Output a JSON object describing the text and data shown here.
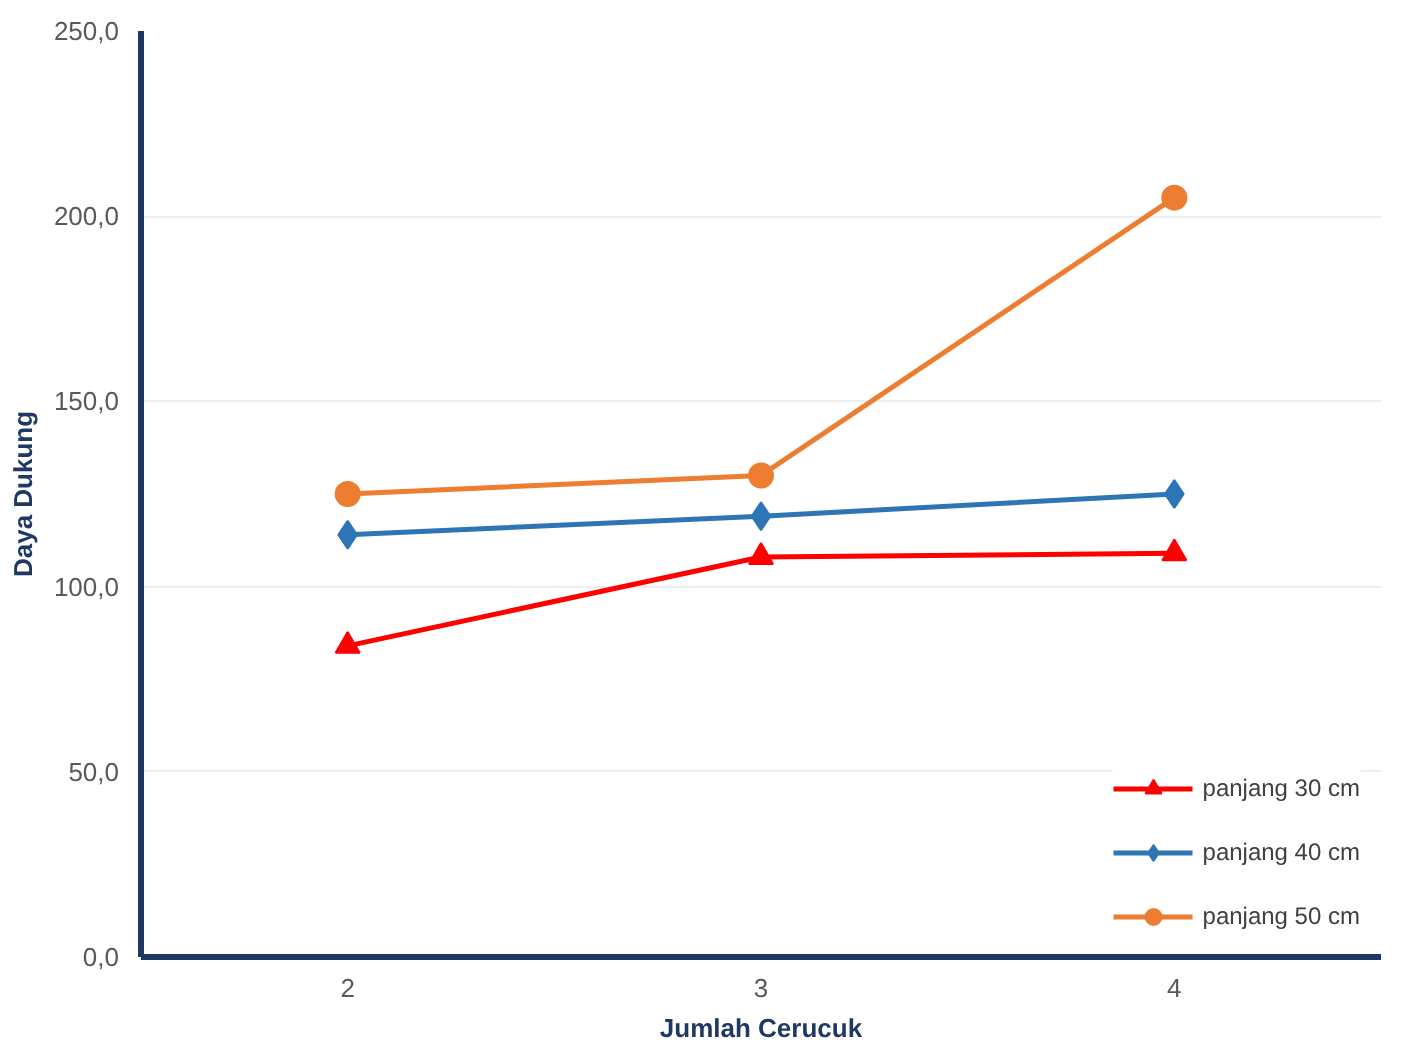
{
  "chart_data": {
    "type": "line",
    "xlabel": "Jumlah Cerucuk",
    "ylabel": "Daya Dukung",
    "categories": [
      "2",
      "3",
      "4"
    ],
    "series": [
      {
        "name": "panjang 30 cm",
        "color": "#ff0000",
        "marker": "triangle",
        "values": [
          84,
          108,
          109
        ]
      },
      {
        "name": "panjang 40 cm",
        "color": "#2e75b6",
        "marker": "diamond",
        "values": [
          114,
          119,
          125
        ]
      },
      {
        "name": "panjang 50 cm",
        "color": "#ed7d31",
        "marker": "circle",
        "values": [
          125,
          130,
          205
        ]
      }
    ],
    "ylim": [
      0,
      250
    ],
    "yticks": [
      {
        "value": 0,
        "label": "0,0"
      },
      {
        "value": 50,
        "label": "50,0"
      },
      {
        "value": 100,
        "label": "100,0"
      },
      {
        "value": 150,
        "label": "150,0"
      },
      {
        "value": 200,
        "label": "200,0"
      },
      {
        "value": 250,
        "label": "250,0"
      }
    ],
    "grid": "y",
    "legend": "bottom right",
    "line_style": "solid"
  }
}
